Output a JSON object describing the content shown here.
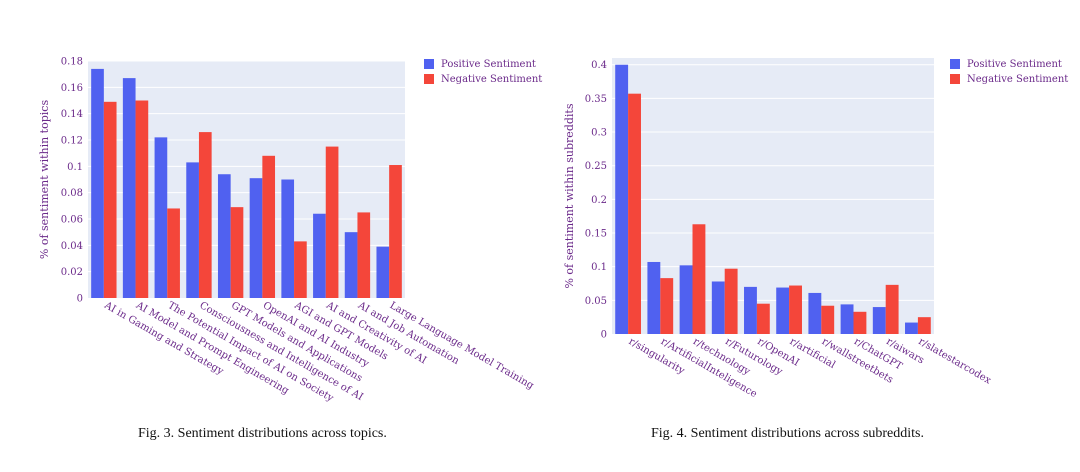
{
  "colors": {
    "positive": "#5061f0",
    "negative": "#f4463a",
    "plot_bg": "#e6ebf6",
    "grid": "#ffffff",
    "text": "#6b2a8a"
  },
  "chart_data": [
    {
      "type": "bar",
      "ylabel": "% of sentiment within topics",
      "ylim": [
        0,
        0.18
      ],
      "yticks": [
        "0",
        "0.02",
        "0.04",
        "0.06",
        "0.08",
        "0.1",
        "0.12",
        "0.14",
        "0.16",
        "0.18"
      ],
      "grid": true,
      "legend_position": "top-right outside",
      "categories": [
        "AI in Gaming and Strategy",
        "AI Model and Prompt Engineering",
        "The Potential Impact of AI on Society",
        "Consciousness and Intelligence of AI",
        "GPT Models and Applications",
        "OpenAI and AI Industry",
        "AGI and GPT Models",
        "AI and Creativity of AI",
        "AI and Job Automation",
        "Large Language Model Training"
      ],
      "series": [
        {
          "name": "Positive Sentiment",
          "values": [
            0.174,
            0.167,
            0.122,
            0.103,
            0.094,
            0.091,
            0.09,
            0.064,
            0.05,
            0.039
          ]
        },
        {
          "name": "Negative Sentiment",
          "values": [
            0.149,
            0.15,
            0.068,
            0.126,
            0.069,
            0.108,
            0.043,
            0.115,
            0.065,
            0.101
          ]
        }
      ]
    },
    {
      "type": "bar",
      "ylabel": "% of sentiment within subreddits",
      "ylim": [
        0,
        0.41
      ],
      "yticks": [
        "0",
        "0.05",
        "0.1",
        "0.15",
        "0.2",
        "0.25",
        "0.3",
        "0.35",
        "0.4"
      ],
      "grid": true,
      "legend_position": "top-right outside",
      "categories": [
        "r/singularity",
        "r/ArtificialInteligence",
        "r/technology",
        "r/Futurology",
        "r/OpenAI",
        "r/artificial",
        "r/wallstreetbets",
        "r/ChatGPT",
        "r/aiwars",
        "r/slatestarcodex"
      ],
      "series": [
        {
          "name": "Positive Sentiment",
          "values": [
            0.4,
            0.107,
            0.102,
            0.078,
            0.07,
            0.069,
            0.061,
            0.044,
            0.04,
            0.017
          ]
        },
        {
          "name": "Negative Sentiment",
          "values": [
            0.357,
            0.083,
            0.163,
            0.097,
            0.045,
            0.072,
            0.042,
            0.033,
            0.073,
            0.025
          ]
        }
      ]
    }
  ],
  "captions": [
    "Fig. 3.  Sentiment distributions across topics.",
    "Fig. 4.  Sentiment distributions across subreddits."
  ]
}
